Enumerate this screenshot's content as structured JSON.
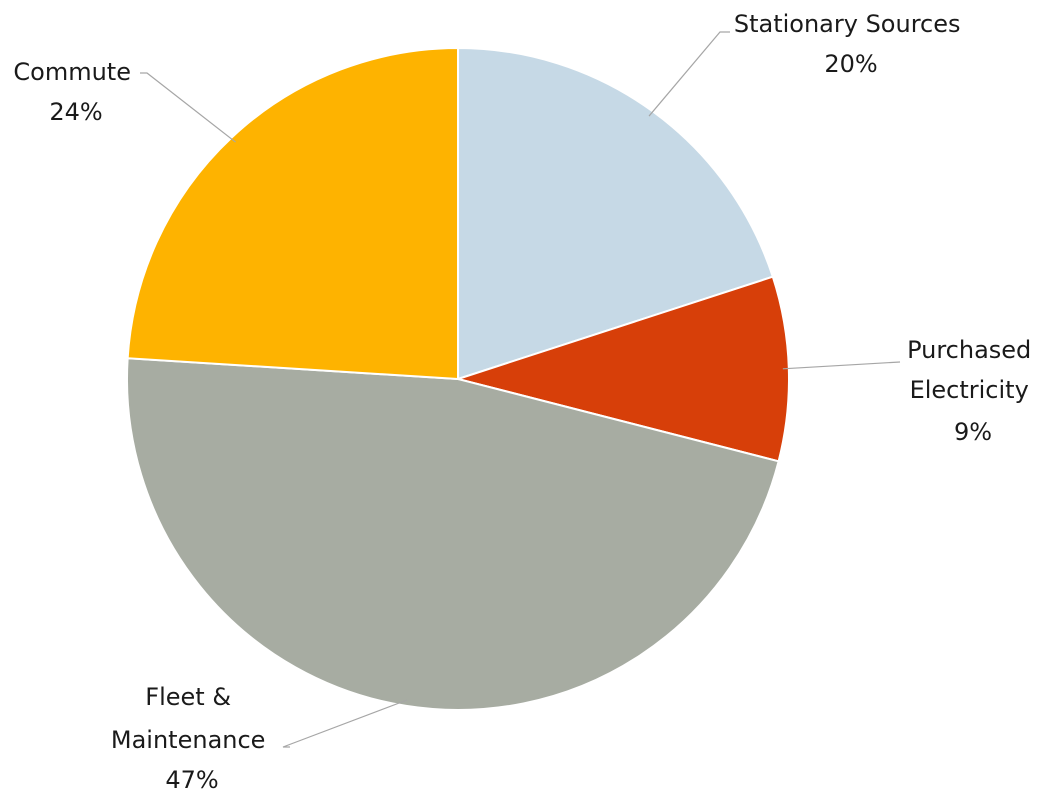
{
  "chart_data": {
    "type": "pie",
    "title": "",
    "slices": [
      {
        "label_lines": [
          "Stationary Sources"
        ],
        "percent_label": "20%",
        "value": 20,
        "color": "#c6d9e6"
      },
      {
        "label_lines": [
          "Purchased",
          "Electricity"
        ],
        "percent_label": "9%",
        "value": 9,
        "color": "#d73f09"
      },
      {
        "label_lines": [
          "Fleet &",
          "Maintenance"
        ],
        "percent_label": "47%",
        "value": 47,
        "color": "#a7aca2"
      },
      {
        "label_lines": [
          "Commute"
        ],
        "percent_label": "24%",
        "value": 24,
        "color": "#feb300"
      }
    ],
    "start_angle": "12 o'clock",
    "direction": "clockwise",
    "legend": "none (data labels with leader lines)"
  }
}
